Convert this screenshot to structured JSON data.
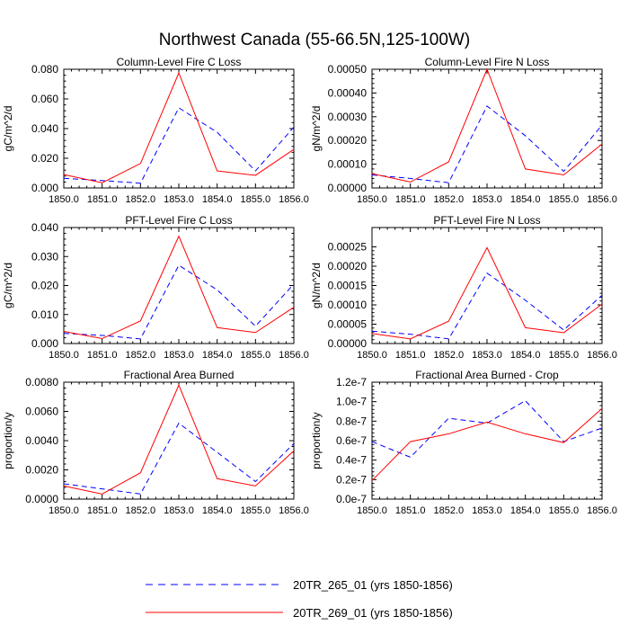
{
  "title": "Northwest Canada (55-66.5N,125-100W)",
  "legend": [
    {
      "label": "20TR_265_01 (yrs 1850-1856)",
      "color": "#0000ff",
      "dash": "dashed"
    },
    {
      "label": "20TR_269_01 (yrs 1850-1856)",
      "color": "#ff0000",
      "dash": "solid"
    }
  ],
  "chart_data": [
    {
      "type": "line",
      "title": "Column-Level Fire C Loss",
      "ylabel": "gC/m^2/d",
      "x": [
        1850,
        1851,
        1852,
        1853,
        1854,
        1855,
        1856
      ],
      "xticks": [
        "1850.0",
        "1851.0",
        "1852.0",
        "1853.0",
        "1854.0",
        "1855.0",
        "1856.0"
      ],
      "ylim": [
        0,
        0.08
      ],
      "yticks": [
        0,
        0.02,
        0.04,
        0.06,
        0.08
      ],
      "ytick_labels": [
        "0.000",
        "0.020",
        "0.040",
        "0.060",
        "0.080"
      ],
      "series": [
        {
          "name": "20TR_265_01 (yrs 1850-1856)",
          "values": [
            0.0065,
            0.005,
            0.0032,
            0.054,
            0.0375,
            0.0115,
            0.041
          ]
        },
        {
          "name": "20TR_269_01 (yrs 1850-1856)",
          "values": [
            0.009,
            0.0035,
            0.0165,
            0.0775,
            0.0115,
            0.0085,
            0.026
          ]
        }
      ]
    },
    {
      "type": "line",
      "title": "Column-Level Fire N Loss",
      "ylabel": "gN/m^2/d",
      "x": [
        1850,
        1851,
        1852,
        1853,
        1854,
        1855,
        1856
      ],
      "xticks": [
        "1850.0",
        "1851.0",
        "1852.0",
        "1853.0",
        "1854.0",
        "1855.0",
        "1856.0"
      ],
      "ylim": [
        0,
        0.0005
      ],
      "yticks": [
        0,
        0.0001,
        0.0002,
        0.0003,
        0.0004,
        0.0005
      ],
      "ytick_labels": [
        "0.00000",
        "0.00010",
        "0.00020",
        "0.00030",
        "0.00040",
        "0.00050"
      ],
      "series": [
        {
          "name": "20TR_265_01 (yrs 1850-1856)",
          "values": [
            5.5e-05,
            4e-05,
            2.2e-05,
            0.000345,
            0.00022,
            7e-05,
            0.000265
          ]
        },
        {
          "name": "20TR_269_01 (yrs 1850-1856)",
          "values": [
            6e-05,
            2.5e-05,
            0.00011,
            0.0005,
            8e-05,
            5.5e-05,
            0.000185
          ]
        }
      ]
    },
    {
      "type": "line",
      "title": "PFT-Level Fire C Loss",
      "ylabel": "gC/m^2/d",
      "x": [
        1850,
        1851,
        1852,
        1853,
        1854,
        1855,
        1856
      ],
      "xticks": [
        "1850.0",
        "1851.0",
        "1852.0",
        "1853.0",
        "1854.0",
        "1855.0",
        "1856.0"
      ],
      "ylim": [
        0,
        0.04
      ],
      "yticks": [
        0,
        0.01,
        0.02,
        0.03,
        0.04
      ],
      "ytick_labels": [
        "0.000",
        "0.010",
        "0.020",
        "0.030",
        "0.040"
      ],
      "series": [
        {
          "name": "20TR_265_01 (yrs 1850-1856)",
          "values": [
            0.0035,
            0.0028,
            0.0016,
            0.027,
            0.0185,
            0.006,
            0.0205
          ]
        },
        {
          "name": "20TR_269_01 (yrs 1850-1856)",
          "values": [
            0.0042,
            0.0017,
            0.0078,
            0.037,
            0.0055,
            0.0038,
            0.0125
          ]
        }
      ]
    },
    {
      "type": "line",
      "title": "PFT-Level Fire N Loss",
      "ylabel": "gN/m^2/d",
      "x": [
        1850,
        1851,
        1852,
        1853,
        1854,
        1855,
        1856
      ],
      "xticks": [
        "1850.0",
        "1851.0",
        "1852.0",
        "1853.0",
        "1854.0",
        "1855.0",
        "1856.0"
      ],
      "ylim": [
        0,
        0.0003
      ],
      "yticks": [
        0,
        5e-05,
        0.0001,
        0.00015,
        0.0002,
        0.00025
      ],
      "ytick_labels": [
        "0.00000",
        "0.00005",
        "0.00010",
        "0.00015",
        "0.00020",
        "0.00025"
      ],
      "series": [
        {
          "name": "20TR_265_01 (yrs 1850-1856)",
          "values": [
            3.2e-05,
            2.4e-05,
            1.2e-05,
            0.000182,
            0.000112,
            3.5e-05,
            0.000125
          ]
        },
        {
          "name": "20TR_269_01 (yrs 1850-1856)",
          "values": [
            2.6e-05,
            1.2e-05,
            5.8e-05,
            0.000248,
            4.1e-05,
            2.8e-05,
            0.000102
          ]
        }
      ]
    },
    {
      "type": "line",
      "title": "Fractional Area Burned",
      "ylabel": "proportion/y",
      "x": [
        1850,
        1851,
        1852,
        1853,
        1854,
        1855,
        1856
      ],
      "xticks": [
        "1850.0",
        "1851.0",
        "1852.0",
        "1853.0",
        "1854.0",
        "1855.0",
        "1856.0"
      ],
      "ylim": [
        0,
        0.008
      ],
      "yticks": [
        0,
        0.002,
        0.004,
        0.006,
        0.008
      ],
      "ytick_labels": [
        "0.0000",
        "0.0020",
        "0.0040",
        "0.0060",
        "0.0080"
      ],
      "series": [
        {
          "name": "20TR_265_01 (yrs 1850-1856)",
          "values": [
            0.00105,
            0.0007,
            0.00035,
            0.0052,
            0.0032,
            0.0012,
            0.0038
          ]
        },
        {
          "name": "20TR_269_01 (yrs 1850-1856)",
          "values": [
            0.0009,
            0.00035,
            0.0018,
            0.0078,
            0.0014,
            0.0009,
            0.0033
          ]
        }
      ]
    },
    {
      "type": "line",
      "title": "Fractional Area Burned - Crop",
      "ylabel": "proportion/y",
      "x": [
        1850,
        1851,
        1852,
        1853,
        1854,
        1855,
        1856
      ],
      "xticks": [
        "1850.0",
        "1851.0",
        "1852.0",
        "1853.0",
        "1854.0",
        "1855.0",
        "1856.0"
      ],
      "ylim": [
        0,
        1.2e-07
      ],
      "yticks": [
        0,
        2e-08,
        4e-08,
        6e-08,
        8e-08,
        1e-07,
        1.2e-07
      ],
      "ytick_labels": [
        "0.0e-7",
        "0.2e-7",
        "0.4e-7",
        "0.6e-7",
        "0.8e-7",
        "1.0e-7",
        "1.2e-7"
      ],
      "series": [
        {
          "name": "20TR_265_01 (yrs 1850-1856)",
          "values": [
            5.9e-08,
            4.3e-08,
            8.3e-08,
            7.8e-08,
            1.01e-07,
            5.9e-08,
            7.3e-08
          ]
        },
        {
          "name": "20TR_269_01 (yrs 1850-1856)",
          "values": [
            1.9e-08,
            5.9e-08,
            6.7e-08,
            7.9e-08,
            6.7e-08,
            5.8e-08,
            9.3e-08
          ]
        }
      ]
    }
  ]
}
